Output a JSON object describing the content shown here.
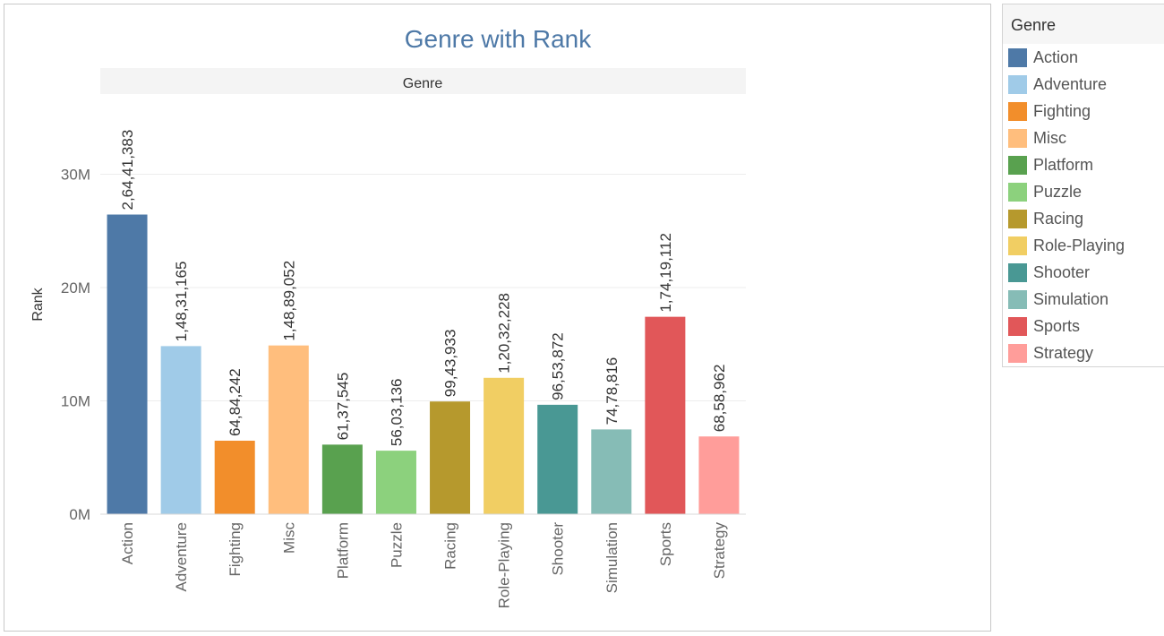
{
  "legend": {
    "title": "Genre",
    "items": [
      {
        "label": "Action",
        "color": "#4e79a7"
      },
      {
        "label": "Adventure",
        "color": "#a0cbe8"
      },
      {
        "label": "Fighting",
        "color": "#f28e2b"
      },
      {
        "label": "Misc",
        "color": "#ffbe7d"
      },
      {
        "label": "Platform",
        "color": "#59a14f"
      },
      {
        "label": "Puzzle",
        "color": "#8cd17d"
      },
      {
        "label": "Racing",
        "color": "#b6992d"
      },
      {
        "label": "Role-Playing",
        "color": "#f1ce63"
      },
      {
        "label": "Shooter",
        "color": "#499894"
      },
      {
        "label": "Simulation",
        "color": "#86bcb6"
      },
      {
        "label": "Sports",
        "color": "#e15759"
      },
      {
        "label": "Strategy",
        "color": "#ff9d9a"
      }
    ]
  },
  "chart_data": {
    "type": "bar",
    "title": "Genre with Rank",
    "header": "Genre",
    "xlabel": "",
    "ylabel": "Rank",
    "ylim": [
      0,
      36000000
    ],
    "yticks": [
      {
        "value": 0,
        "label": "0M"
      },
      {
        "value": 10000000,
        "label": "10M"
      },
      {
        "value": 20000000,
        "label": "20M"
      },
      {
        "value": 30000000,
        "label": "30M"
      }
    ],
    "grid": true,
    "legend_position": "right",
    "categories": [
      "Action",
      "Adventure",
      "Fighting",
      "Misc",
      "Platform",
      "Puzzle",
      "Racing",
      "Role-Playing",
      "Shooter",
      "Simulation",
      "Sports",
      "Strategy"
    ],
    "values": [
      26441383,
      14831165,
      6484242,
      14889052,
      6137545,
      5603136,
      9943933,
      12032228,
      9653872,
      7478816,
      17419112,
      6858962
    ],
    "value_labels": [
      "2,64,41,383",
      "1,48,31,165",
      "64,84,242",
      "1,48,89,052",
      "61,37,545",
      "56,03,136",
      "99,43,933",
      "1,20,32,228",
      "96,53,872",
      "74,78,816",
      "1,74,19,112",
      "68,58,962"
    ],
    "colors": [
      "#4e79a7",
      "#a0cbe8",
      "#f28e2b",
      "#ffbe7d",
      "#59a14f",
      "#8cd17d",
      "#b6992d",
      "#f1ce63",
      "#499894",
      "#86bcb6",
      "#e15759",
      "#ff9d9a"
    ]
  }
}
